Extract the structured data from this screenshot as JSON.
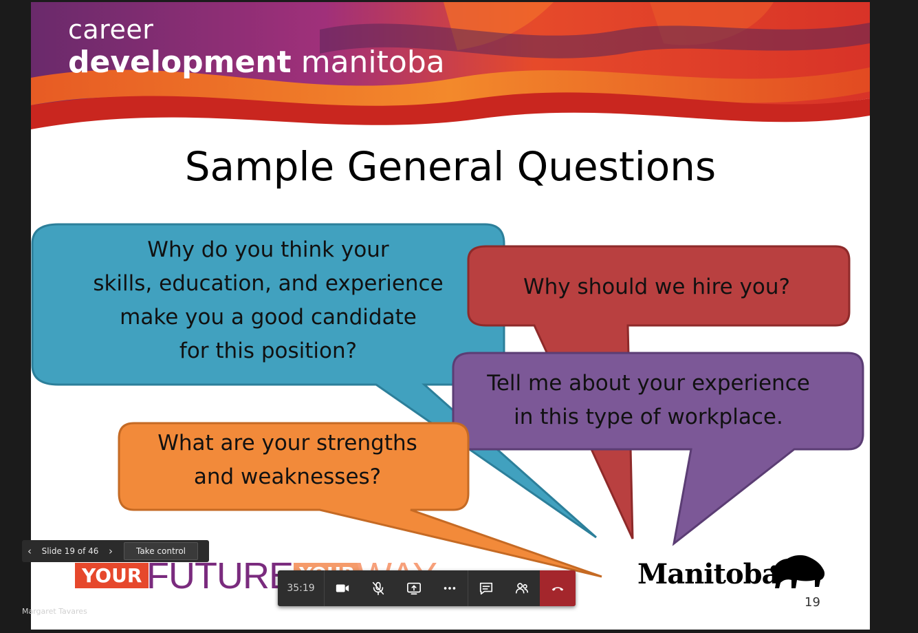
{
  "slide": {
    "brand": {
      "line1": "career",
      "line2_bold": "development",
      "line2_light": "manitoba"
    },
    "title": "Sample General Questions",
    "bubbles": {
      "blue": [
        "Why do you think your",
        "skills, education, and experience",
        "make you a good candidate",
        "for this position?"
      ],
      "red": [
        "Why should we hire you?"
      ],
      "purple": [
        "Tell me about your experience",
        "in this type of workplace."
      ],
      "orange": [
        "What are your strengths",
        "and weaknesses?"
      ]
    },
    "footer": {
      "your": "YOUR",
      "future": "FUTURE",
      "your2": "YOUR",
      "way": "WAY",
      "manitoba": "Manitoba"
    },
    "page_number": "19"
  },
  "slide_nav": {
    "count": "Slide 19 of 46",
    "take_control": "Take control"
  },
  "call_bar": {
    "timer": "35:19"
  },
  "presenter_name": "Margaret Tavares",
  "colors": {
    "blue": "#41a1bf",
    "blue_border": "#2c7f9a",
    "red": "#b94040",
    "red_border": "#8e2a2a",
    "purple": "#7c5897",
    "purple_border": "#5b3d74",
    "orange": "#f28a3a",
    "orange_border": "#c56a24",
    "hangup": "#a4262c"
  },
  "icons": {
    "camera": "video-camera-icon",
    "mic": "mic-muted-icon",
    "share": "share-screen-icon",
    "more": "more-options-icon",
    "chat": "chat-icon",
    "people": "participants-icon",
    "hangup": "hang-up-icon"
  }
}
